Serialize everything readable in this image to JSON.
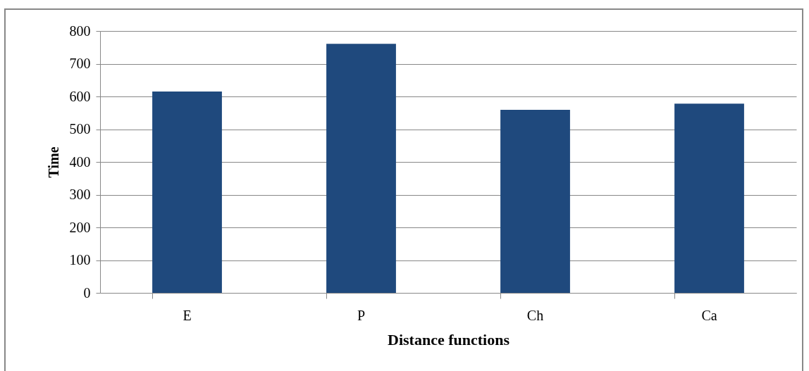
{
  "chart_data": {
    "type": "bar",
    "xlabel": "Distance functions",
    "ylabel": "Time",
    "categories": [
      "E",
      "P",
      "Ch",
      "Ca"
    ],
    "values": [
      615,
      761,
      559,
      578
    ],
    "color": "#1f497d",
    "ylim": [
      0,
      800
    ],
    "yticks": [
      0,
      100,
      200,
      300,
      400,
      500,
      600,
      700,
      800
    ],
    "grid": "y"
  }
}
